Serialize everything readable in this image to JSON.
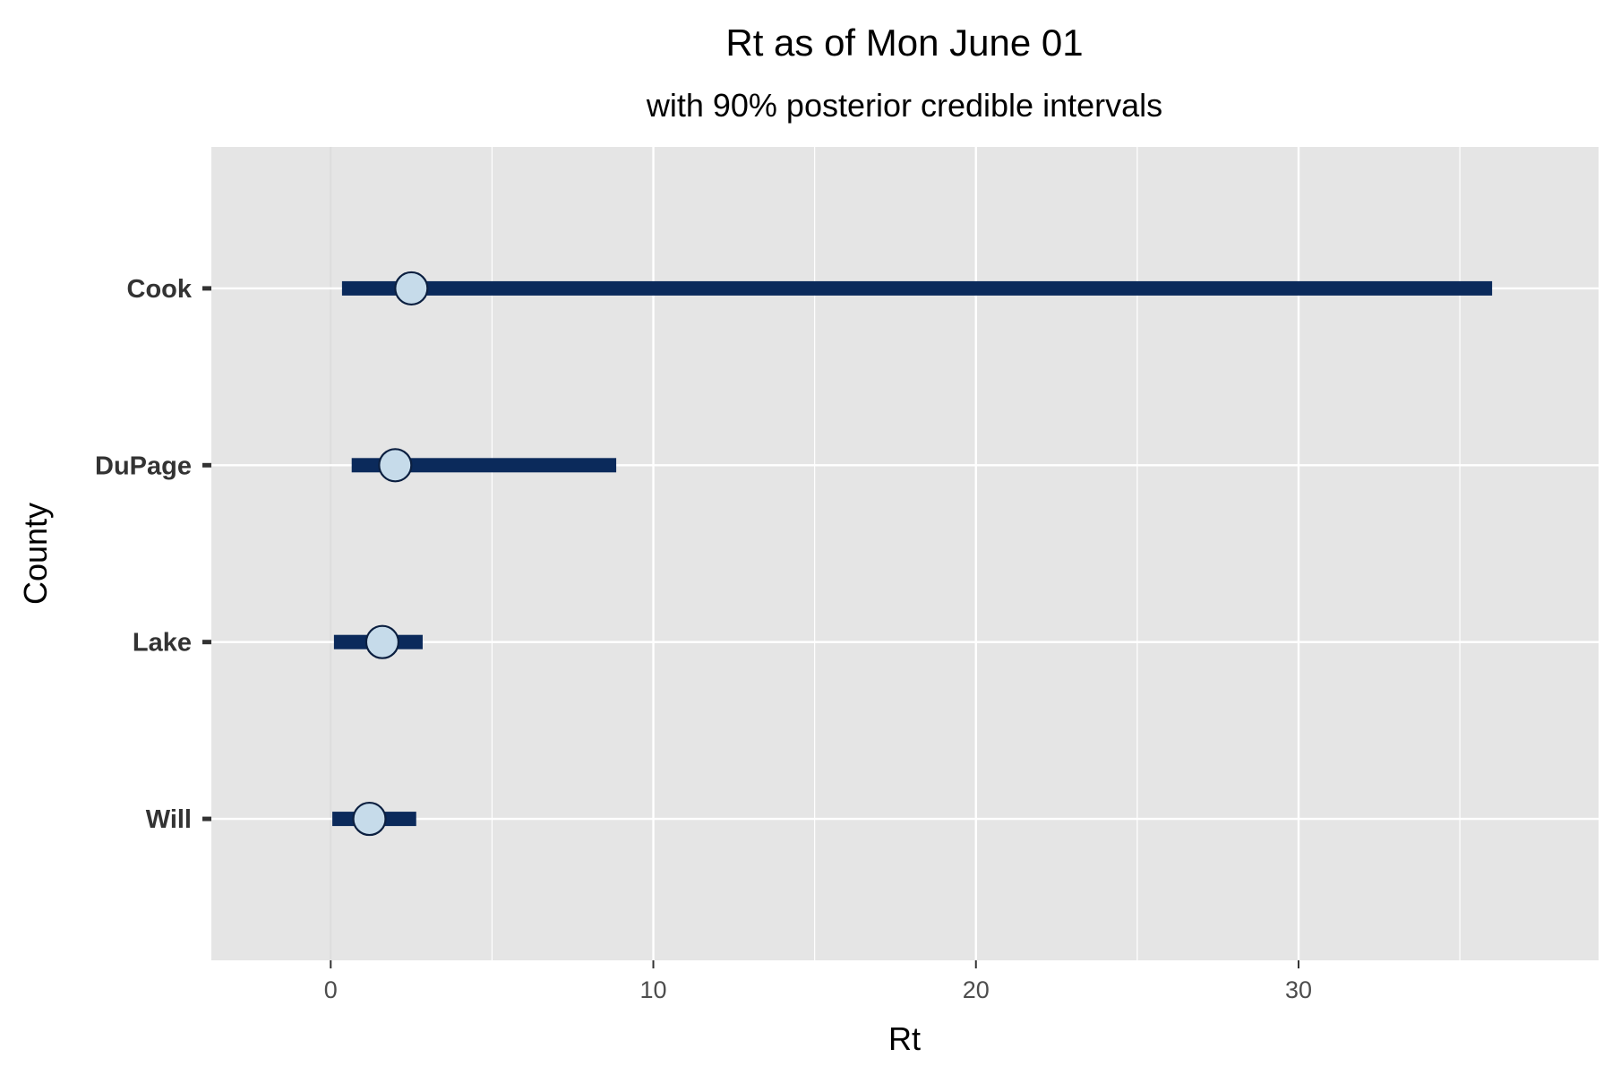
{
  "chart_data": {
    "type": "errorbar-dot",
    "title": "Rt as of Mon June 01",
    "subtitle": "with 90% posterior credible intervals",
    "xlabel": "Rt",
    "ylabel": "County",
    "xlim": [
      -3.7,
      39.3
    ],
    "xticks": [
      0,
      10,
      20,
      30
    ],
    "xtick_labels": [
      "0",
      "10",
      "20",
      "30"
    ],
    "grid": true,
    "legend": "none",
    "colors": {
      "panel": "#e5e5e5",
      "grid": "#ffffff",
      "interval": "#0b2a5b",
      "point_fill": "#c6dbea",
      "point_stroke": "#0b1f40",
      "zero_line": "#dedede"
    },
    "counties": [
      {
        "name": "Cook",
        "rt": 2.5,
        "lower": 0.35,
        "upper": 36.0
      },
      {
        "name": "DuPage",
        "rt": 2.0,
        "lower": 0.65,
        "upper": 8.85
      },
      {
        "name": "Lake",
        "rt": 1.6,
        "lower": 0.1,
        "upper": 2.85
      },
      {
        "name": "Will",
        "rt": 1.2,
        "lower": 0.05,
        "upper": 2.65
      }
    ]
  }
}
